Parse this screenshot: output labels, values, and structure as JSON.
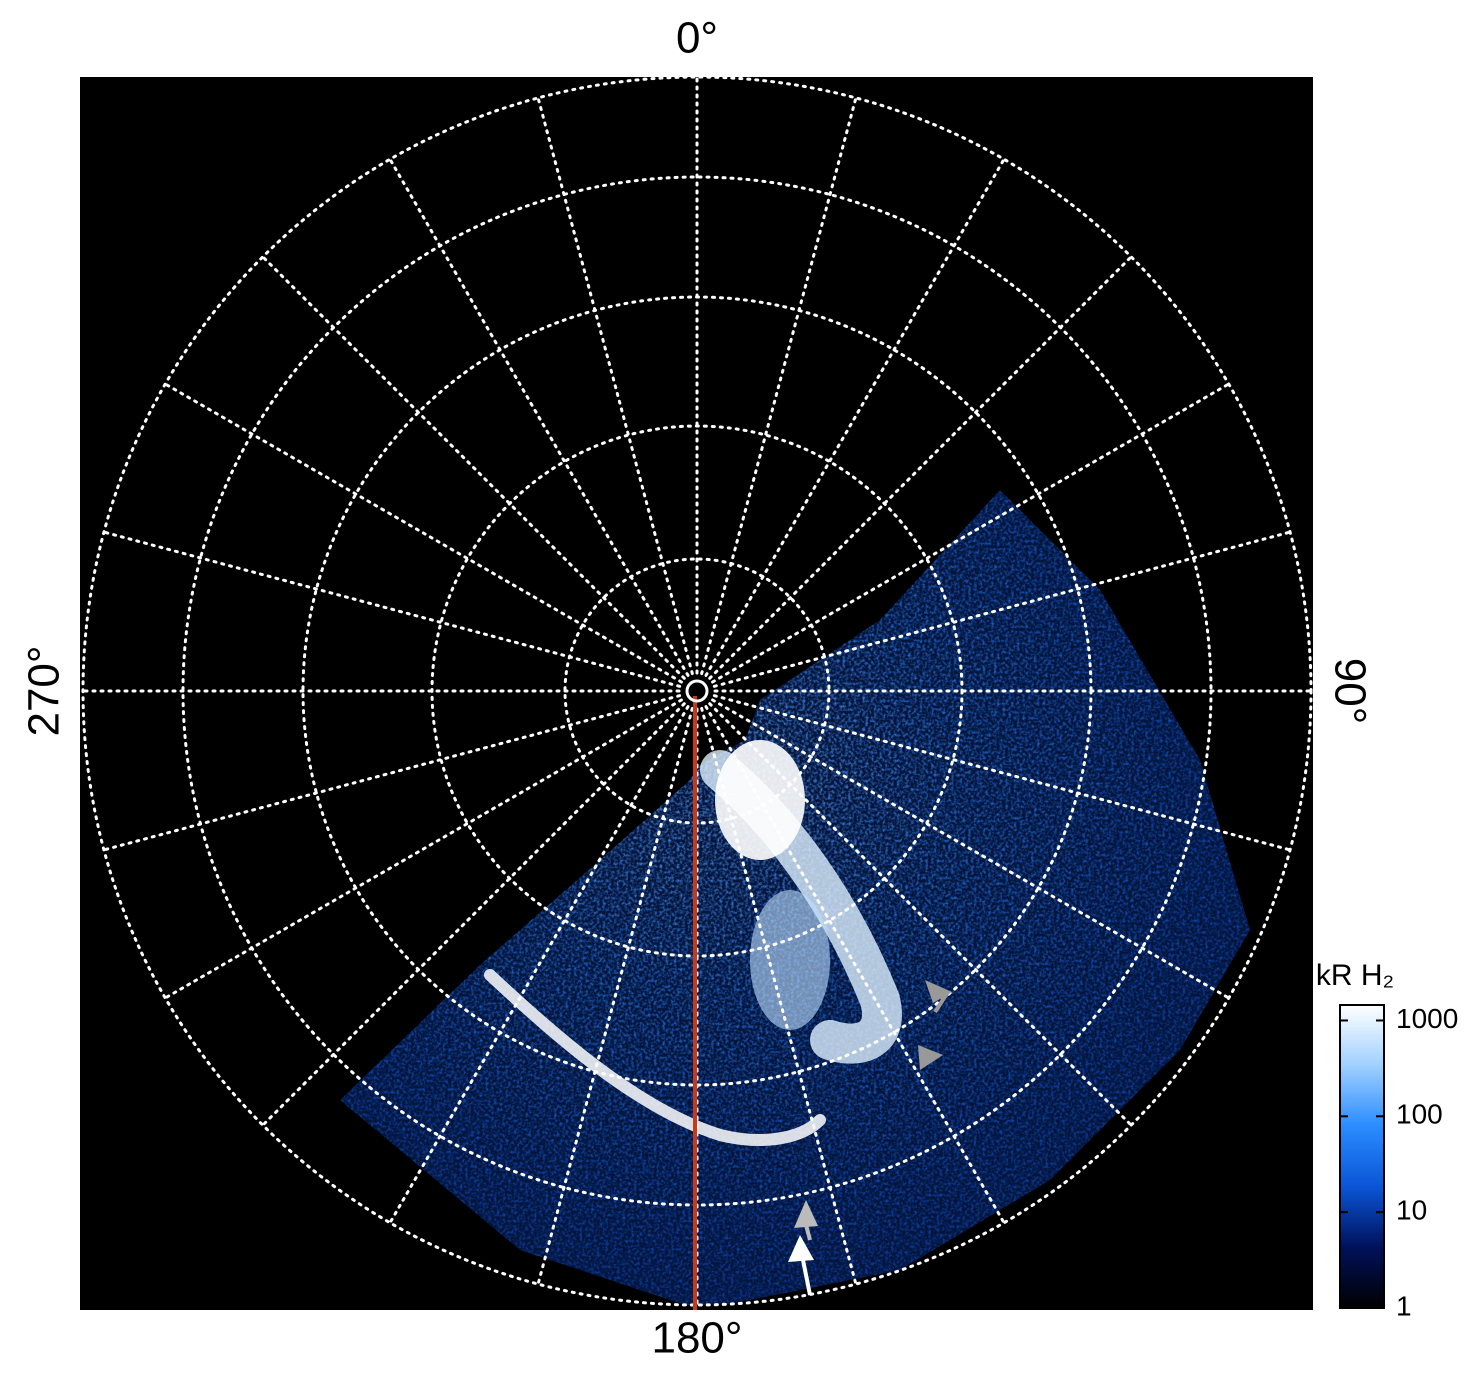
{
  "chart_data": {
    "type": "polar-image",
    "thetaticks": [
      {
        "value": 0,
        "label": "0°"
      },
      {
        "value": 90,
        "label": "90°"
      },
      {
        "value": 180,
        "label": "180°"
      },
      {
        "value": 270,
        "label": "270°"
      }
    ],
    "colorbar": {
      "label": "kR H₂",
      "log_scale": true,
      "lim": [
        1,
        1450
      ],
      "ticks": [
        1,
        10,
        100,
        1000
      ],
      "colors": [
        "#000000",
        "#00115a",
        "#0a55d6",
        "#2a8cff",
        "#9fd0ff",
        "#ffffff"
      ]
    }
  }
}
